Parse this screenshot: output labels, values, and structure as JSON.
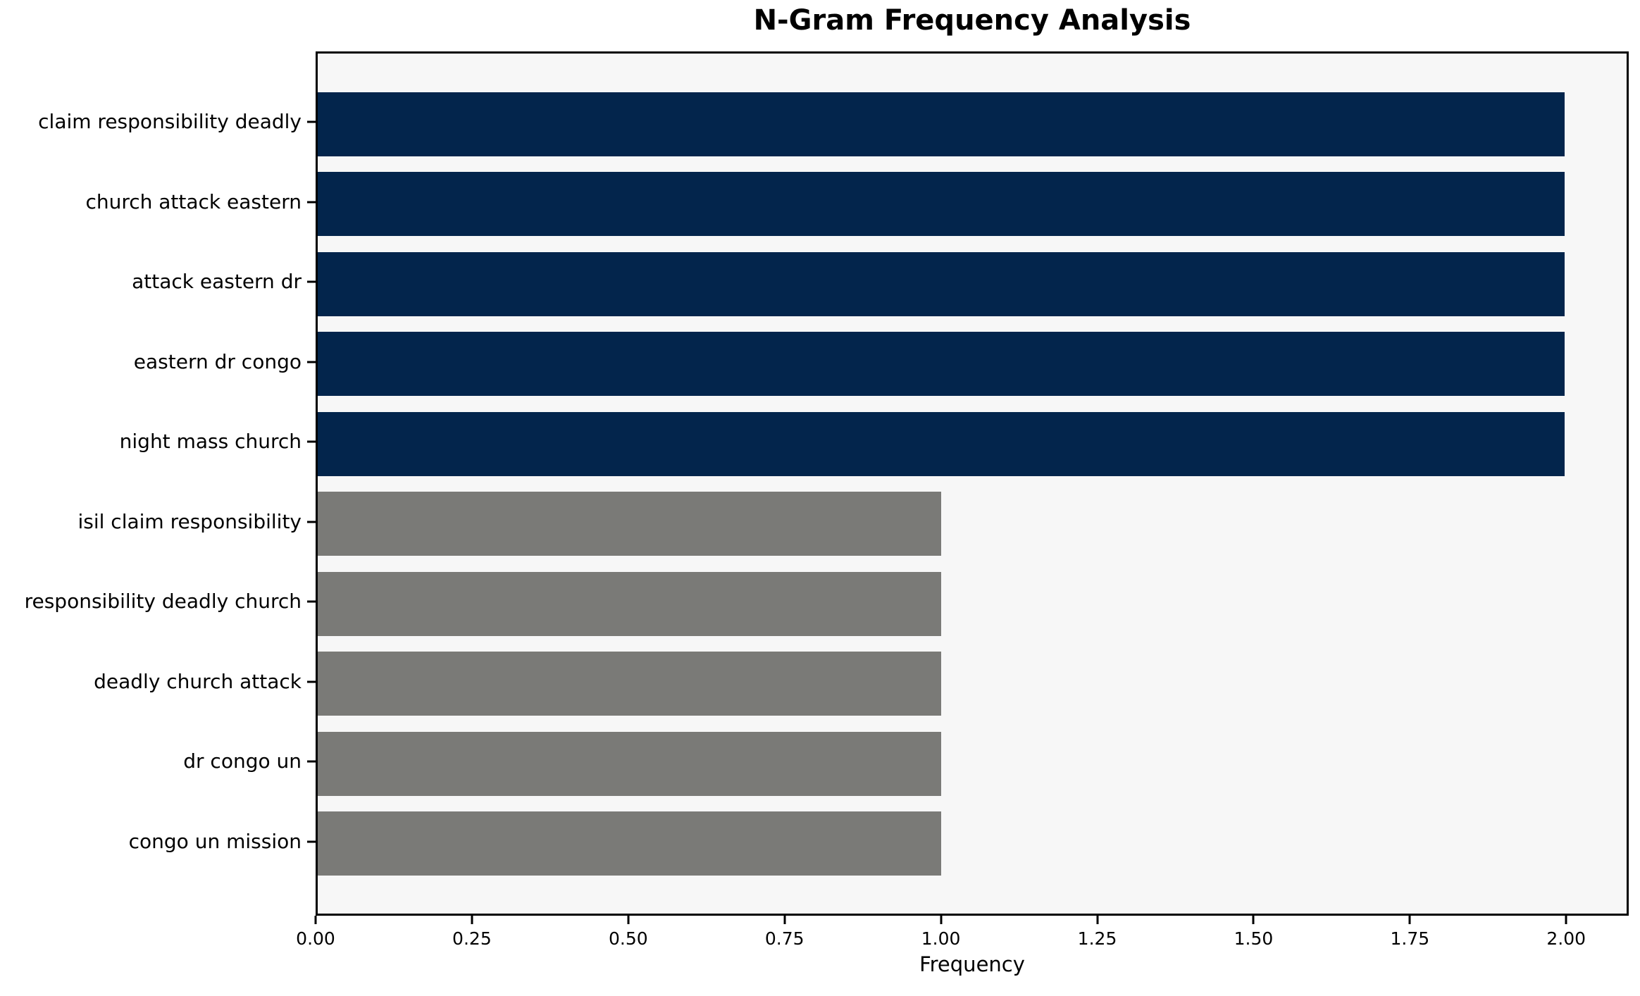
{
  "chart_data": {
    "type": "bar",
    "orientation": "horizontal",
    "title": "N-Gram Frequency Analysis",
    "xlabel": "Frequency",
    "ylabel": "",
    "categories": [
      "claim responsibility deadly",
      "church attack eastern",
      "attack eastern dr",
      "eastern dr congo",
      "night mass church",
      "isil claim responsibility",
      "responsibility deadly church",
      "deadly church attack",
      "dr congo un",
      "congo un mission"
    ],
    "values": [
      2,
      2,
      2,
      2,
      2,
      1,
      1,
      1,
      1,
      1
    ],
    "bar_colors": [
      "#03254c",
      "#03254c",
      "#03254c",
      "#03254c",
      "#03254c",
      "#7a7a77",
      "#7a7a77",
      "#7a7a77",
      "#7a7a77",
      "#7a7a77"
    ],
    "xlim": [
      0,
      2.1
    ],
    "x_ticks": [
      {
        "value": 0.0,
        "label": "0.00"
      },
      {
        "value": 0.25,
        "label": "0.25"
      },
      {
        "value": 0.5,
        "label": "0.50"
      },
      {
        "value": 0.75,
        "label": "0.75"
      },
      {
        "value": 1.0,
        "label": "1.00"
      },
      {
        "value": 1.25,
        "label": "1.25"
      },
      {
        "value": 1.5,
        "label": "1.50"
      },
      {
        "value": 1.75,
        "label": "1.75"
      },
      {
        "value": 2.0,
        "label": "2.00"
      }
    ],
    "grid": false,
    "legend": "none",
    "colors": {
      "highlight_bar": "#03254c",
      "normal_bar": "#7a7a77",
      "plot_background": "#f7f7f7",
      "figure_background": "#ffffff",
      "spine": "#000000",
      "text": "#000000"
    }
  }
}
